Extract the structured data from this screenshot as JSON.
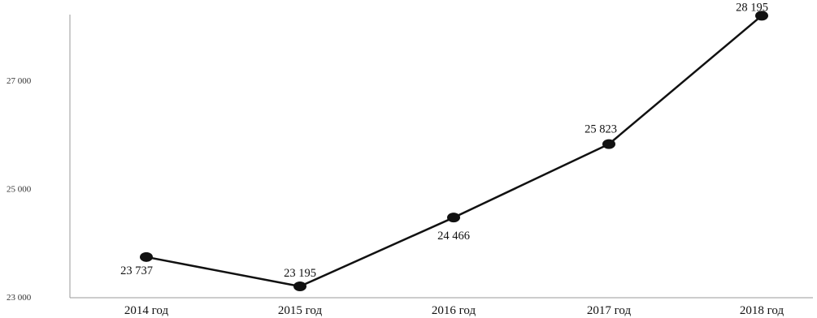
{
  "chart_data": {
    "type": "line",
    "categories": [
      "2014 год",
      "2015 год",
      "2016 год",
      "2017 год",
      "2018 год"
    ],
    "values": [
      23737,
      23195,
      24466,
      25823,
      28195
    ],
    "data_labels": [
      "23 737",
      "23 195",
      "24 466",
      "25 823",
      "28 195"
    ],
    "yticks": [
      {
        "value": 23000,
        "label": "23 000"
      },
      {
        "value": 25000,
        "label": "25 000"
      },
      {
        "value": 27000,
        "label": "27 000"
      }
    ],
    "ylim": [
      23000,
      29000
    ],
    "grid": false,
    "line_color": "#111111",
    "marker_color": "#111111"
  }
}
